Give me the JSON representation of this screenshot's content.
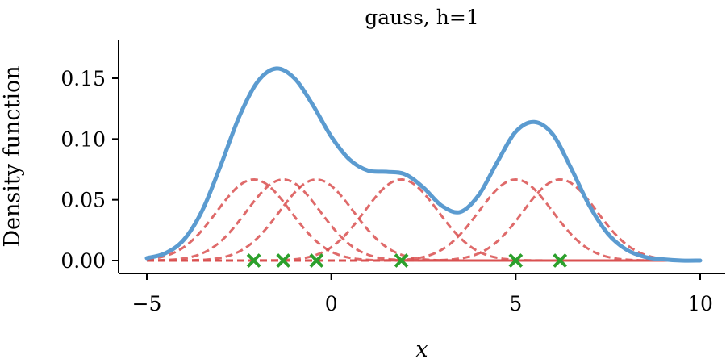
{
  "chart_data": {
    "type": "line",
    "title": "gauss, h=1",
    "xlabel": "x",
    "ylabel": "Density function",
    "xlim": [
      -5,
      10
    ],
    "ylim": [
      -0.011,
      0.18
    ],
    "xticks": [
      -5,
      0,
      5,
      10
    ],
    "xtick_labels": [
      "−5",
      "0",
      "5",
      "10"
    ],
    "yticks": [
      0.0,
      0.05,
      0.1,
      0.15
    ],
    "ytick_labels": [
      "0.00",
      "0.05",
      "0.10",
      "0.15"
    ],
    "grid": false,
    "bandwidth": 1,
    "kernel_scale": 0.0667,
    "samples": [
      -2.1,
      -1.3,
      -0.4,
      1.9,
      5.0,
      6.2
    ],
    "kde_curve_color": "#5b9bd0",
    "kernel_color": "#d95050",
    "sample_marker_color": "#2ca02c",
    "series": [
      {
        "kind": "kde_sum",
        "style": "solid",
        "x": [
          -5.0,
          -4.5,
          -4.0,
          -3.5,
          -3.0,
          -2.5,
          -2.0,
          -1.5,
          -1.0,
          -0.5,
          0.0,
          0.5,
          1.0,
          1.5,
          2.0,
          2.5,
          3.0,
          3.5,
          4.0,
          4.5,
          5.0,
          5.5,
          6.0,
          6.5,
          7.0,
          7.5,
          8.0,
          8.5,
          9.0,
          9.5,
          10.0
        ],
        "y": [
          0.002,
          0.006,
          0.017,
          0.041,
          0.078,
          0.118,
          0.147,
          0.158,
          0.15,
          0.128,
          0.102,
          0.083,
          0.074,
          0.073,
          0.071,
          0.06,
          0.045,
          0.04,
          0.054,
          0.081,
          0.106,
          0.114,
          0.104,
          0.076,
          0.045,
          0.022,
          0.009,
          0.003,
          0.001,
          0.0,
          0.0
        ]
      },
      {
        "kind": "kernels",
        "style": "dashed"
      }
    ]
  }
}
